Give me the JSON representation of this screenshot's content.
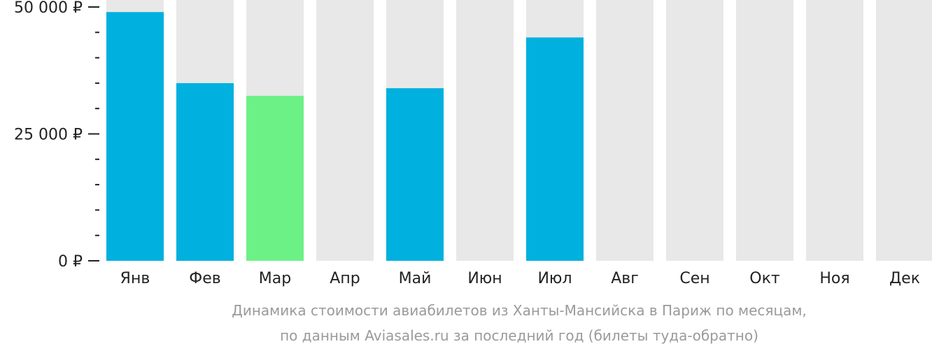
{
  "chart_data": {
    "type": "bar",
    "categories": [
      "Янв",
      "Фев",
      "Мар",
      "Апр",
      "Май",
      "Июн",
      "Июл",
      "Авг",
      "Сен",
      "Окт",
      "Ноя",
      "Дек"
    ],
    "values": [
      49000,
      35000,
      32500,
      null,
      34000,
      null,
      44000,
      null,
      null,
      null,
      null,
      null
    ],
    "highlight_index": 2,
    "ylim": [
      0,
      50000
    ],
    "y_ticks": [
      {
        "value": 0,
        "label": "0 ₽"
      },
      {
        "value": 25000,
        "label": "25 000 ₽"
      },
      {
        "value": 50000,
        "label": "50 000 ₽"
      }
    ],
    "y_minor_step": 5000,
    "grid": false,
    "legend": "none",
    "caption_lines": [
      "Динамика стоимости авиабилетов из Ханты-Мансийска в Париж по месяцам,",
      "по данным Aviasales.ru за последний год (билеты туда-обратно)"
    ],
    "colors": {
      "bar": "#00b0de",
      "highlight": "#6cf187",
      "background_bar": "#e8e8e8",
      "axis": "#222222",
      "caption": "#9a9a9a"
    }
  }
}
